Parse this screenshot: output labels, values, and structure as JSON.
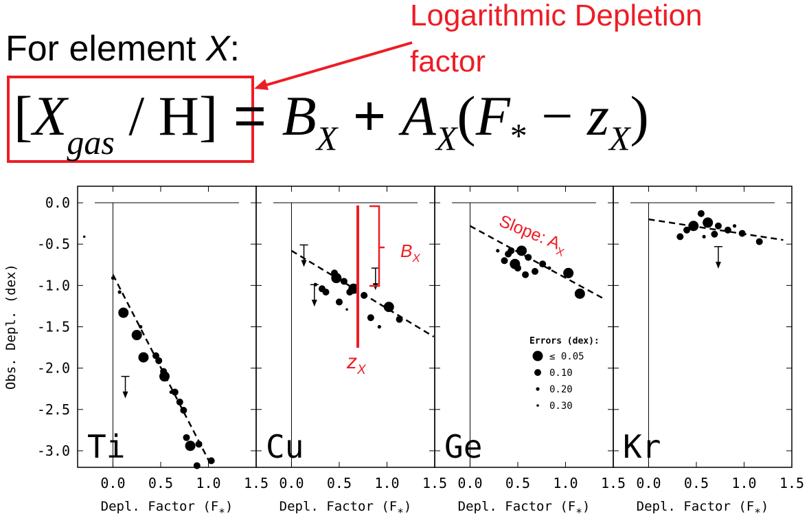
{
  "heading": [
    "For element ",
    "X",
    ":"
  ],
  "callout": [
    "Logarithmic Depletion",
    "factor"
  ],
  "equation": [
    "[",
    "X",
    "gas",
    " / H]",
    " = ",
    "B",
    "X",
    " + ",
    "A",
    "X",
    "(",
    "F",
    "*",
    " − ",
    "z",
    "X",
    ")"
  ],
  "annotations": {
    "slope": [
      "Slope: A",
      "X"
    ],
    "offset": [
      "B",
      "X"
    ],
    "zero": [
      "z",
      "X"
    ]
  },
  "chart_data": {
    "type": "scatter",
    "ylabel": "Obs. Depl. (dex)",
    "xlabel": [
      "Depl. Factor (F",
      "*",
      ")"
    ],
    "xlim": [
      -0.37,
      1.5
    ],
    "xticks": [
      {
        "value": 0,
        "label": "0.0"
      },
      0.5,
      {
        "value": 1,
        "label": "1.0"
      },
      1.5
    ],
    "ylim": [
      -3.2,
      0.2
    ],
    "yticks": [
      {
        "value": 0,
        "label": "0.0"
      },
      -0.5,
      {
        "value": -1,
        "label": "-1.0"
      },
      -1.5,
      {
        "value": -2,
        "label": "-2.0"
      },
      -2.5,
      {
        "value": -3,
        "label": "-3.0"
      }
    ],
    "color": "#000000",
    "panels": [
      {
        "label": "Ti",
        "points": {
          "x": [
            0.11,
            0.25,
            0.32,
            0.45,
            0.54,
            0.53,
            0.7,
            0.65,
            0.74,
            0.77,
            0.81,
            0.9,
            1.03,
            0.88,
            0.07,
            0.29,
            0.61,
            0.48,
            -0.3,
            0.0
          ],
          "y": [
            -1.33,
            -1.6,
            -1.87,
            -1.85,
            -2.1,
            -2.04,
            -2.41,
            -2.29,
            -2.51,
            -2.84,
            -2.94,
            -2.92,
            -3.12,
            -3.18,
            -1.08,
            -1.5,
            -2.29,
            -1.91,
            -0.41,
            -0.91
          ],
          "errors": [
            0.05,
            0.05,
            0.05,
            0.1,
            0.05,
            0.1,
            0.1,
            0.1,
            0.1,
            0.1,
            0.05,
            0.1,
            0.1,
            0.1,
            0.2,
            0.2,
            0.2,
            0.1,
            0.3,
            0.2
          ]
        },
        "fit": {
          "x": [
            0.0,
            1.04
          ],
          "y": [
            -0.87,
            -3.2
          ]
        },
        "limits": {
          "x": [
            0.13
          ],
          "y": [
            -2.1
          ]
        }
      },
      {
        "label": "Cu",
        "points": {
          "x": [
            0.47,
            0.55,
            0.65,
            0.45,
            0.32,
            0.36,
            0.76,
            0.83,
            1.02,
            1.13,
            0.92,
            0.5,
            0.61,
            0.25,
            0.58
          ],
          "y": [
            -0.91,
            -0.95,
            -1.04,
            -0.85,
            -1.04,
            -1.08,
            -1.12,
            -1.39,
            -1.26,
            -1.41,
            -1.5,
            -1.2,
            -1.08,
            -0.99,
            -1.29
          ],
          "errors": [
            0.05,
            0.1,
            0.05,
            0.1,
            0.1,
            0.1,
            0.1,
            0.1,
            0.05,
            0.1,
            0.2,
            0.1,
            0.1,
            0.2,
            0.3
          ]
        },
        "fit": {
          "x": [
            0.0,
            1.49
          ],
          "y": [
            -0.58,
            -1.62
          ]
        },
        "limits": {
          "x": [
            0.13,
            0.24,
            0.88
          ],
          "y": [
            -0.51,
            -0.99,
            -0.79
          ]
        }
      },
      {
        "label": "Ge",
        "points": {
          "x": [
            0.4,
            0.54,
            0.36,
            0.61,
            0.47,
            0.76,
            1.03,
            1.15,
            0.43,
            0.68,
            0.5,
            0.29,
            0.58,
            0.83
          ],
          "y": [
            -0.62,
            -0.58,
            -0.7,
            -0.66,
            -0.74,
            -0.74,
            -0.85,
            -1.1,
            -0.58,
            -0.83,
            -0.79,
            -0.58,
            -0.87,
            -0.79
          ],
          "errors": [
            0.1,
            0.05,
            0.1,
            0.1,
            0.05,
            0.1,
            0.05,
            0.05,
            0.1,
            0.1,
            0.1,
            0.2,
            0.1,
            0.2
          ]
        },
        "fit": {
          "x": [
            0.0,
            1.4
          ],
          "y": [
            -0.28,
            -1.16
          ]
        },
        "limits": {
          "x": [],
          "y": []
        },
        "legend": {
          "title": "Errors (dex):",
          "items": [
            {
              "value": 0.05,
              "label": "≤ 0.05"
            },
            {
              "value": 0.1,
              "label": "0.10"
            },
            {
              "value": 0.2,
              "label": "0.20"
            },
            {
              "value": 0.3,
              "label": "0.30"
            }
          ]
        }
      },
      {
        "label": "Kr",
        "points": {
          "x": [
            0.55,
            0.62,
            0.73,
            0.4,
            0.83,
            0.98,
            1.16,
            0.47,
            0.33,
            0.69,
            0.9,
            0.58
          ],
          "y": [
            -0.13,
            -0.24,
            -0.28,
            -0.33,
            -0.33,
            -0.37,
            -0.47,
            -0.28,
            -0.41,
            -0.38,
            -0.28,
            -0.41
          ],
          "errors": [
            0.1,
            0.05,
            0.1,
            0.1,
            0.1,
            0.1,
            0.1,
            0.05,
            0.1,
            0.1,
            0.2,
            0.2
          ]
        },
        "fit": {
          "x": [
            0.0,
            1.41
          ],
          "y": [
            -0.2,
            -0.45
          ]
        },
        "limits": {
          "x": [
            0.73
          ],
          "y": [
            -0.53
          ]
        }
      }
    ]
  }
}
